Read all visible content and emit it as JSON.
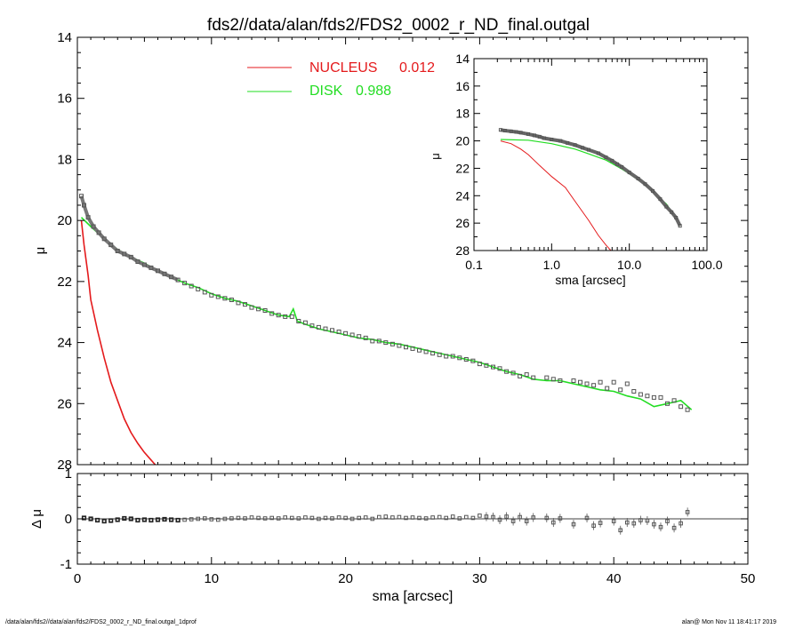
{
  "title": "fds2//data/alan/fds2/FDS2_0002_r_ND_final.outgal",
  "footer": {
    "left": "/data/alan/fds2//data/alan/fds2/FDS2_0002_r_ND_final.outgal_1dprof",
    "right": "alan@  Mon Nov 11 18:41:17 2019"
  },
  "colors": {
    "nucleus": "#e41a1c",
    "disk": "#22dd22",
    "data": "#555555",
    "axes": "#000000"
  },
  "chart_data": [
    {
      "type": "line",
      "name": "main-profile",
      "xlabel": "",
      "ylabel": "μ",
      "xlim": [
        0,
        50
      ],
      "ylim": [
        28,
        14
      ],
      "y_reversed": true,
      "xticks": [
        "0",
        "10",
        "20",
        "30",
        "40",
        "50"
      ],
      "yticks": [
        "14",
        "16",
        "18",
        "20",
        "22",
        "24",
        "26",
        "28"
      ],
      "legend": [
        {
          "label": "NUCLEUS",
          "value": "0.012",
          "color": "#e41a1c"
        },
        {
          "label": "DISK",
          "value": "0.988",
          "color": "#22dd22"
        }
      ],
      "data_points": {
        "x": [
          0.3,
          0.5,
          0.8,
          1.2,
          1.6,
          2.0,
          2.5,
          3.0,
          3.5,
          4.0,
          4.5,
          5.0,
          5.5,
          6.0,
          6.5,
          7.0,
          7.5,
          8.0,
          8.5,
          9.0,
          9.5,
          10.0,
          10.5,
          11.0,
          11.5,
          12.0,
          12.5,
          13.0,
          13.5,
          14.0,
          14.5,
          15.0,
          15.5,
          16.0,
          16.5,
          17.0,
          17.5,
          18.0,
          18.5,
          19.0,
          19.5,
          20.0,
          20.5,
          21.0,
          21.5,
          22.0,
          22.5,
          23.0,
          23.5,
          24.0,
          24.5,
          25.0,
          25.5,
          26.0,
          26.5,
          27.0,
          27.5,
          28.0,
          28.5,
          29.0,
          29.5,
          30.0,
          30.5,
          31.0,
          31.5,
          32.0,
          32.5,
          33.0,
          33.5,
          34.0,
          35.0,
          35.5,
          36.0,
          37.0,
          37.5,
          38.0,
          38.5,
          39.0,
          39.5,
          40.0,
          40.5,
          41.0,
          41.5,
          42.0,
          42.5,
          43.0,
          43.5,
          44.0,
          44.5,
          45.0,
          45.5
        ],
        "y": [
          19.2,
          19.5,
          19.9,
          20.2,
          20.4,
          20.6,
          20.8,
          21.0,
          21.1,
          21.2,
          21.35,
          21.45,
          21.55,
          21.65,
          21.75,
          21.85,
          21.95,
          22.05,
          22.15,
          22.25,
          22.35,
          22.45,
          22.5,
          22.55,
          22.6,
          22.7,
          22.75,
          22.85,
          22.9,
          22.95,
          23.05,
          23.1,
          23.15,
          23.15,
          23.3,
          23.35,
          23.45,
          23.5,
          23.55,
          23.6,
          23.65,
          23.7,
          23.75,
          23.8,
          23.85,
          23.95,
          23.95,
          24.0,
          24.05,
          24.1,
          24.15,
          24.2,
          24.25,
          24.3,
          24.35,
          24.4,
          24.45,
          24.45,
          24.5,
          24.55,
          24.6,
          24.7,
          24.75,
          24.8,
          24.85,
          24.95,
          25.0,
          25.1,
          25.05,
          25.15,
          25.15,
          25.2,
          25.25,
          25.25,
          25.3,
          25.35,
          25.4,
          25.3,
          25.5,
          25.3,
          25.55,
          25.35,
          25.6,
          25.7,
          25.75,
          25.8,
          25.8,
          26.0,
          25.9,
          26.1,
          26.2
        ]
      },
      "disk_model": {
        "x": [
          0.3,
          1.0,
          2.0,
          3.0,
          4.0,
          5.0,
          6.0,
          7.0,
          8.0,
          9.0,
          10.0,
          11.0,
          12.0,
          13.0,
          14.0,
          15.0,
          15.8,
          16.1,
          16.4,
          17.0,
          18.0,
          19.0,
          20.0,
          21.0,
          22.0,
          23.0,
          24.0,
          25.0,
          26.0,
          27.0,
          28.0,
          29.0,
          30.0,
          31.0,
          32.0,
          33.0,
          34.0,
          35.0,
          36.0,
          37.0,
          38.0,
          39.0,
          40.0,
          41.0,
          42.0,
          43.0,
          44.0,
          45.0,
          45.8
        ],
        "y": [
          19.9,
          20.2,
          20.6,
          20.95,
          21.2,
          21.4,
          21.65,
          21.85,
          22.05,
          22.2,
          22.4,
          22.55,
          22.65,
          22.8,
          22.95,
          23.1,
          23.15,
          22.9,
          23.3,
          23.4,
          23.55,
          23.65,
          23.75,
          23.85,
          23.9,
          24.0,
          24.05,
          24.15,
          24.25,
          24.35,
          24.45,
          24.55,
          24.65,
          24.8,
          24.95,
          25.05,
          25.2,
          25.25,
          25.25,
          25.35,
          25.45,
          25.55,
          25.6,
          25.75,
          25.85,
          26.1,
          26.0,
          25.9,
          26.2
        ]
      },
      "nucleus_model": {
        "x": [
          0.3,
          0.5,
          0.8,
          1.0,
          1.5,
          2.0,
          2.5,
          3.0,
          3.5,
          4.0,
          4.5,
          5.0,
          5.5,
          5.8
        ],
        "y": [
          20.0,
          20.8,
          21.8,
          22.6,
          23.6,
          24.5,
          25.3,
          25.9,
          26.5,
          26.95,
          27.3,
          27.6,
          27.85,
          28.0
        ]
      }
    },
    {
      "type": "scatter",
      "name": "residuals",
      "xlabel": "sma [arcsec]",
      "ylabel": "Δ μ",
      "xlim": [
        0,
        50
      ],
      "ylim": [
        -1,
        1
      ],
      "xticks": [
        "0",
        "10",
        "20",
        "30",
        "40",
        "50"
      ],
      "yticks": [
        "1",
        "0",
        "-1"
      ],
      "points": {
        "x": [
          0.5,
          1,
          1.5,
          2,
          2.5,
          3,
          3.5,
          4,
          4.5,
          5,
          5.5,
          6,
          6.5,
          7,
          7.5,
          8,
          8.5,
          9,
          9.5,
          10,
          10.5,
          11,
          11.5,
          12,
          12.5,
          13,
          13.5,
          14,
          14.5,
          15,
          15.5,
          16,
          16.5,
          17,
          17.5,
          18,
          18.5,
          19,
          19.5,
          20,
          20.5,
          21,
          21.5,
          22,
          22.5,
          23,
          23.5,
          24,
          24.5,
          25,
          25.5,
          26,
          26.5,
          27,
          27.5,
          28,
          28.5,
          29,
          29.5,
          30,
          30.5,
          31,
          31.5,
          32,
          32.5,
          33,
          33.5,
          34,
          35,
          35.5,
          36,
          37,
          38,
          38.5,
          39,
          40,
          40.5,
          41,
          41.5,
          42,
          42.5,
          43,
          43.5,
          44,
          44.5,
          45,
          45.5
        ],
        "y": [
          0.02,
          0,
          -0.03,
          -0.05,
          -0.04,
          -0.02,
          0.01,
          0,
          -0.03,
          -0.02,
          -0.03,
          -0.02,
          -0.01,
          -0.02,
          -0.03,
          -0.02,
          -0.01,
          0,
          0.01,
          -0.01,
          -0.02,
          0,
          0.01,
          0.02,
          0.01,
          0.03,
          0.02,
          0.01,
          0.02,
          0.01,
          0.03,
          0.02,
          0.01,
          0.03,
          0.02,
          0,
          0.02,
          0.01,
          0.03,
          0.02,
          0,
          0.02,
          0.03,
          0,
          0.04,
          0.05,
          0.03,
          0.04,
          0.02,
          0.03,
          0.02,
          0.01,
          0.03,
          0.04,
          0.02,
          0.05,
          0.01,
          0.04,
          0.02,
          0.07,
          0.05,
          0.04,
          -0.02,
          0.05,
          -0.05,
          0.04,
          -0.05,
          0.03,
          0.02,
          -0.08,
          0.01,
          -0.12,
          0.02,
          -0.15,
          -0.09,
          -0.05,
          -0.25,
          -0.08,
          -0.1,
          -0.03,
          -0.04,
          -0.12,
          -0.18,
          -0.05,
          -0.2,
          -0.1,
          0.15
        ]
      }
    },
    {
      "type": "line",
      "name": "inset-log-profile",
      "xlabel": "sma [arcsec]",
      "ylabel": "μ",
      "xscale": "log",
      "xlim": [
        0.1,
        100
      ],
      "ylim": [
        28,
        14
      ],
      "y_reversed": true,
      "xticks": [
        "0.1",
        "1.0",
        "10.0",
        "100.0"
      ],
      "yticks": [
        "14",
        "16",
        "18",
        "20",
        "22",
        "24",
        "26",
        "28"
      ],
      "data_points": {
        "x": [
          0.22,
          0.25,
          0.3,
          0.35,
          0.4,
          0.5,
          0.6,
          0.7,
          0.8,
          1.0,
          1.3,
          1.6,
          2.0,
          2.5,
          3.0,
          4.0,
          5.0,
          6.0,
          7.0,
          8.0,
          10.0,
          13.0,
          16.0,
          20.0,
          25.0,
          30.0,
          35.0,
          40.0,
          45.0
        ],
        "y": [
          19.2,
          19.25,
          19.3,
          19.35,
          19.4,
          19.5,
          19.6,
          19.7,
          19.8,
          19.9,
          20.0,
          20.15,
          20.3,
          20.5,
          20.65,
          20.9,
          21.2,
          21.45,
          21.7,
          21.9,
          22.3,
          22.75,
          23.15,
          23.65,
          24.25,
          24.8,
          25.2,
          25.6,
          26.2
        ]
      },
      "disk_model": {
        "x": [
          0.22,
          0.5,
          1.0,
          2.0,
          3.0,
          5.0,
          8.0,
          10.0,
          15.0,
          20.0,
          30.0,
          40.0,
          45.0
        ],
        "y": [
          19.9,
          19.95,
          20.2,
          20.6,
          20.95,
          21.4,
          22.05,
          22.4,
          23.1,
          23.7,
          24.6,
          25.6,
          26.2
        ]
      },
      "nucleus_model": {
        "x": [
          0.22,
          0.3,
          0.4,
          0.5,
          0.7,
          1.0,
          1.5,
          2.0,
          3.0,
          4.0,
          5.0,
          5.8
        ],
        "y": [
          20.0,
          20.2,
          20.6,
          21.0,
          21.8,
          22.6,
          23.4,
          24.4,
          25.8,
          26.9,
          27.6,
          28.0
        ]
      }
    }
  ]
}
